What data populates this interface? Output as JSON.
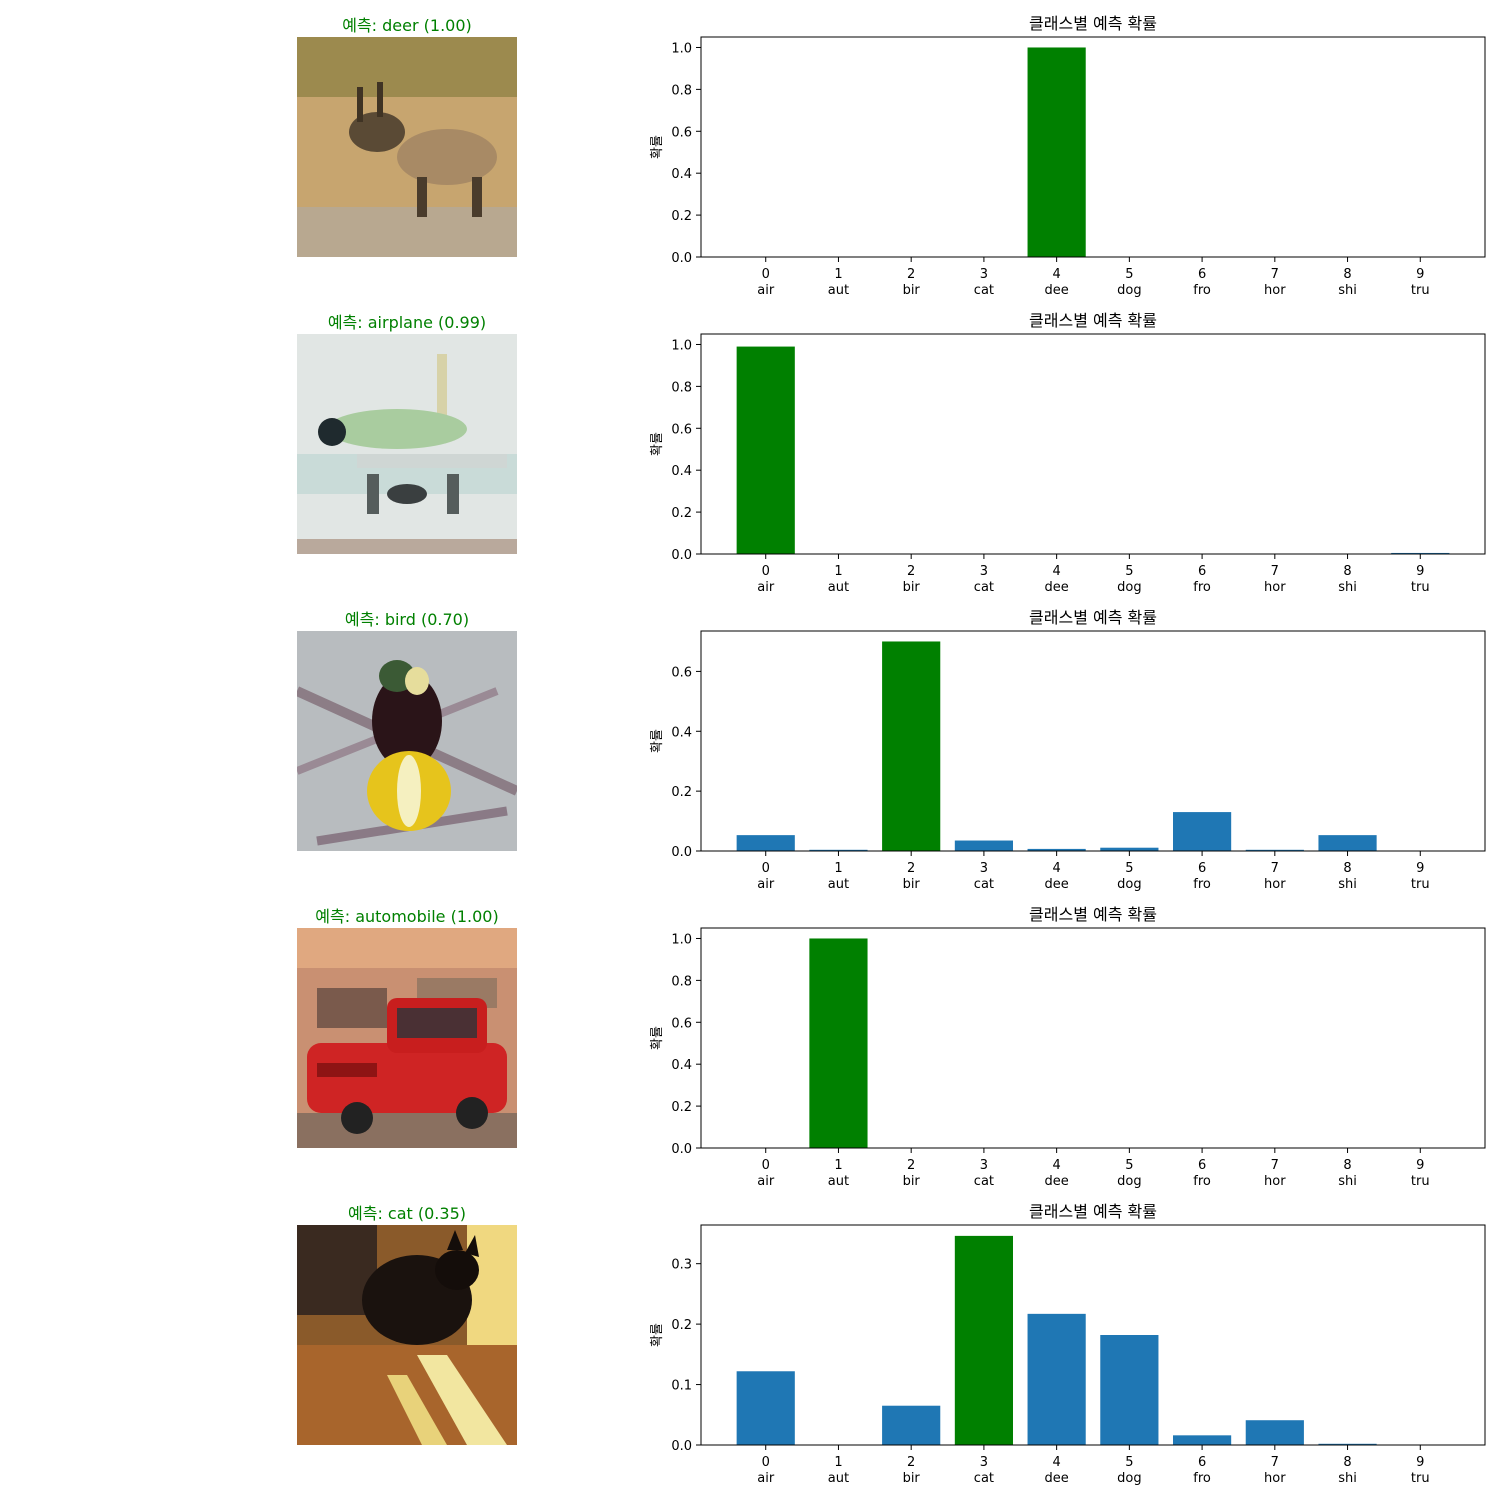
{
  "figure": {
    "panels": [
      {
        "image_title": "예측: deer (1.00)",
        "image_icon": "deer-photo",
        "chart_title": "클래스별 예측 확률",
        "ylabel": "확률",
        "highlight_index": 4,
        "ylim": [
          0,
          1.05
        ],
        "yticks": [
          "0.0",
          "0.2",
          "0.4",
          "0.6",
          "0.8",
          "1.0"
        ]
      },
      {
        "image_title": "예측: airplane (0.99)",
        "image_icon": "airplane-photo",
        "chart_title": "클래스별 예측 확률",
        "ylabel": "확률",
        "highlight_index": 0,
        "ylim": [
          0,
          1.05
        ],
        "yticks": [
          "0.0",
          "0.2",
          "0.4",
          "0.6",
          "0.8",
          "1.0"
        ]
      },
      {
        "image_title": "예측: bird (0.70)",
        "image_icon": "bird-photo",
        "chart_title": "클래스별 예측 확률",
        "ylabel": "확률",
        "highlight_index": 2,
        "ylim": [
          0,
          0.735
        ],
        "yticks": [
          "0.0",
          "0.2",
          "0.4",
          "0.6"
        ]
      },
      {
        "image_title": "예측: automobile (1.00)",
        "image_icon": "car-photo",
        "chart_title": "클래스별 예측 확률",
        "ylabel": "확률",
        "highlight_index": 1,
        "ylim": [
          0,
          1.05
        ],
        "yticks": [
          "0.0",
          "0.2",
          "0.4",
          "0.6",
          "0.8",
          "1.0"
        ]
      },
      {
        "image_title": "예측: cat (0.35)",
        "image_icon": "cat-photo",
        "chart_title": "클래스별 예측 확률",
        "ylabel": "확률",
        "highlight_index": 3,
        "ylim": [
          0,
          0.364
        ],
        "yticks": [
          "0.0",
          "0.1",
          "0.2",
          "0.3"
        ]
      }
    ]
  },
  "colors": {
    "default_bar": "#1f77b4",
    "highlight_bar": "#008000",
    "title_text": "#008000",
    "axis": "#000000"
  },
  "chart_data": [
    {
      "type": "bar",
      "title": "클래스별 예측 확률",
      "ylabel": "확률",
      "categories": [
        "0\nair",
        "1\naut",
        "2\nbir",
        "3\ncat",
        "4\ndee",
        "5\ndog",
        "6\nfro",
        "7\nhor",
        "8\nshi",
        "9\ntru"
      ],
      "x_numbers": [
        "0",
        "1",
        "2",
        "3",
        "4",
        "5",
        "6",
        "7",
        "8",
        "9"
      ],
      "x_names": [
        "air",
        "aut",
        "bir",
        "cat",
        "dee",
        "dog",
        "fro",
        "hor",
        "shi",
        "tru"
      ],
      "values": [
        0.0,
        0.0,
        0.0,
        0.0,
        1.0,
        0.0,
        0.0,
        0.0,
        0.0,
        0.0
      ],
      "ylim": [
        0,
        1.05
      ]
    },
    {
      "type": "bar",
      "title": "클래스별 예측 확률",
      "ylabel": "확률",
      "x_numbers": [
        "0",
        "1",
        "2",
        "3",
        "4",
        "5",
        "6",
        "7",
        "8",
        "9"
      ],
      "x_names": [
        "air",
        "aut",
        "bir",
        "cat",
        "dee",
        "dog",
        "fro",
        "hor",
        "shi",
        "tru"
      ],
      "values": [
        0.99,
        0.0,
        0.0,
        0.0,
        0.0,
        0.0,
        0.0,
        0.0,
        0.0,
        0.005
      ],
      "ylim": [
        0,
        1.05
      ]
    },
    {
      "type": "bar",
      "title": "클래스별 예측 확률",
      "ylabel": "확률",
      "x_numbers": [
        "0",
        "1",
        "2",
        "3",
        "4",
        "5",
        "6",
        "7",
        "8",
        "9"
      ],
      "x_names": [
        "air",
        "aut",
        "bir",
        "cat",
        "dee",
        "dog",
        "fro",
        "hor",
        "shi",
        "tru"
      ],
      "values": [
        0.053,
        0.004,
        0.7,
        0.035,
        0.007,
        0.011,
        0.13,
        0.004,
        0.053,
        0.001
      ],
      "ylim": [
        0,
        0.735
      ]
    },
    {
      "type": "bar",
      "title": "클래스별 예측 확률",
      "ylabel": "확률",
      "x_numbers": [
        "0",
        "1",
        "2",
        "3",
        "4",
        "5",
        "6",
        "7",
        "8",
        "9"
      ],
      "x_names": [
        "air",
        "aut",
        "bir",
        "cat",
        "dee",
        "dog",
        "fro",
        "hor",
        "shi",
        "tru"
      ],
      "values": [
        0.0,
        1.0,
        0.0,
        0.0,
        0.0,
        0.0,
        0.0,
        0.0,
        0.0,
        0.0
      ],
      "ylim": [
        0,
        1.05
      ]
    },
    {
      "type": "bar",
      "title": "클래스별 예측 확률",
      "ylabel": "확률",
      "x_numbers": [
        "0",
        "1",
        "2",
        "3",
        "4",
        "5",
        "6",
        "7",
        "8",
        "9"
      ],
      "x_names": [
        "air",
        "aut",
        "bir",
        "cat",
        "dee",
        "dog",
        "fro",
        "hor",
        "shi",
        "tru"
      ],
      "values": [
        0.122,
        0.0,
        0.065,
        0.346,
        0.217,
        0.182,
        0.016,
        0.041,
        0.002,
        0.0
      ],
      "ylim": [
        0,
        0.364
      ]
    }
  ]
}
